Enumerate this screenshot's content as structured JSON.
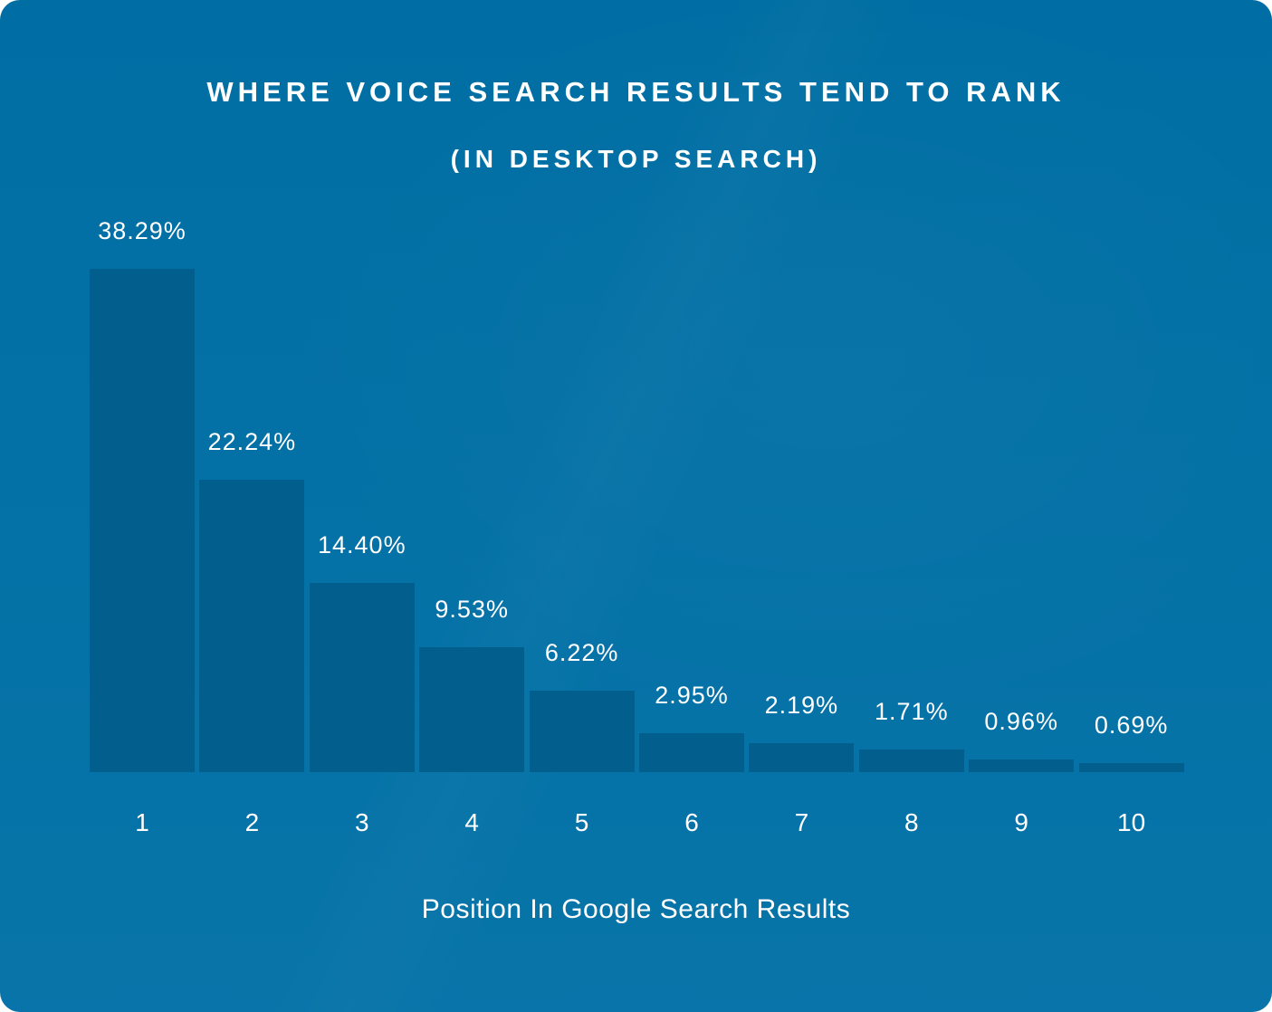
{
  "card": {
    "title": "WHERE VOICE SEARCH RESULTS TEND TO RANK",
    "subtitle": "(IN DESKTOP SEARCH)",
    "xlabel": "Position In Google Search Results"
  },
  "colors": {
    "card_background": "#0070a6",
    "bar": "#025e8c",
    "text": "#ffffff"
  },
  "chart_data": {
    "type": "bar",
    "title": "WHERE VOICE SEARCH RESULTS TEND TO RANK",
    "subtitle": "(IN DESKTOP SEARCH)",
    "categories": [
      "1",
      "2",
      "3",
      "4",
      "5",
      "6",
      "7",
      "8",
      "9",
      "10"
    ],
    "values": [
      38.29,
      22.24,
      14.4,
      9.53,
      6.22,
      2.95,
      2.19,
      1.71,
      0.96,
      0.69
    ],
    "value_labels": [
      "38.29%",
      "22.24%",
      "14.40%",
      "9.53%",
      "6.22%",
      "2.95%",
      "2.19%",
      "1.71%",
      "0.96%",
      "0.69%"
    ],
    "xlabel": "Position In Google Search Results",
    "ylabel": "",
    "ylim": [
      0,
      40
    ],
    "grid": false,
    "legend": "none"
  },
  "layout_hints": {
    "bar_color_note": "bars darker than background",
    "data_label_position": "above each bar"
  }
}
